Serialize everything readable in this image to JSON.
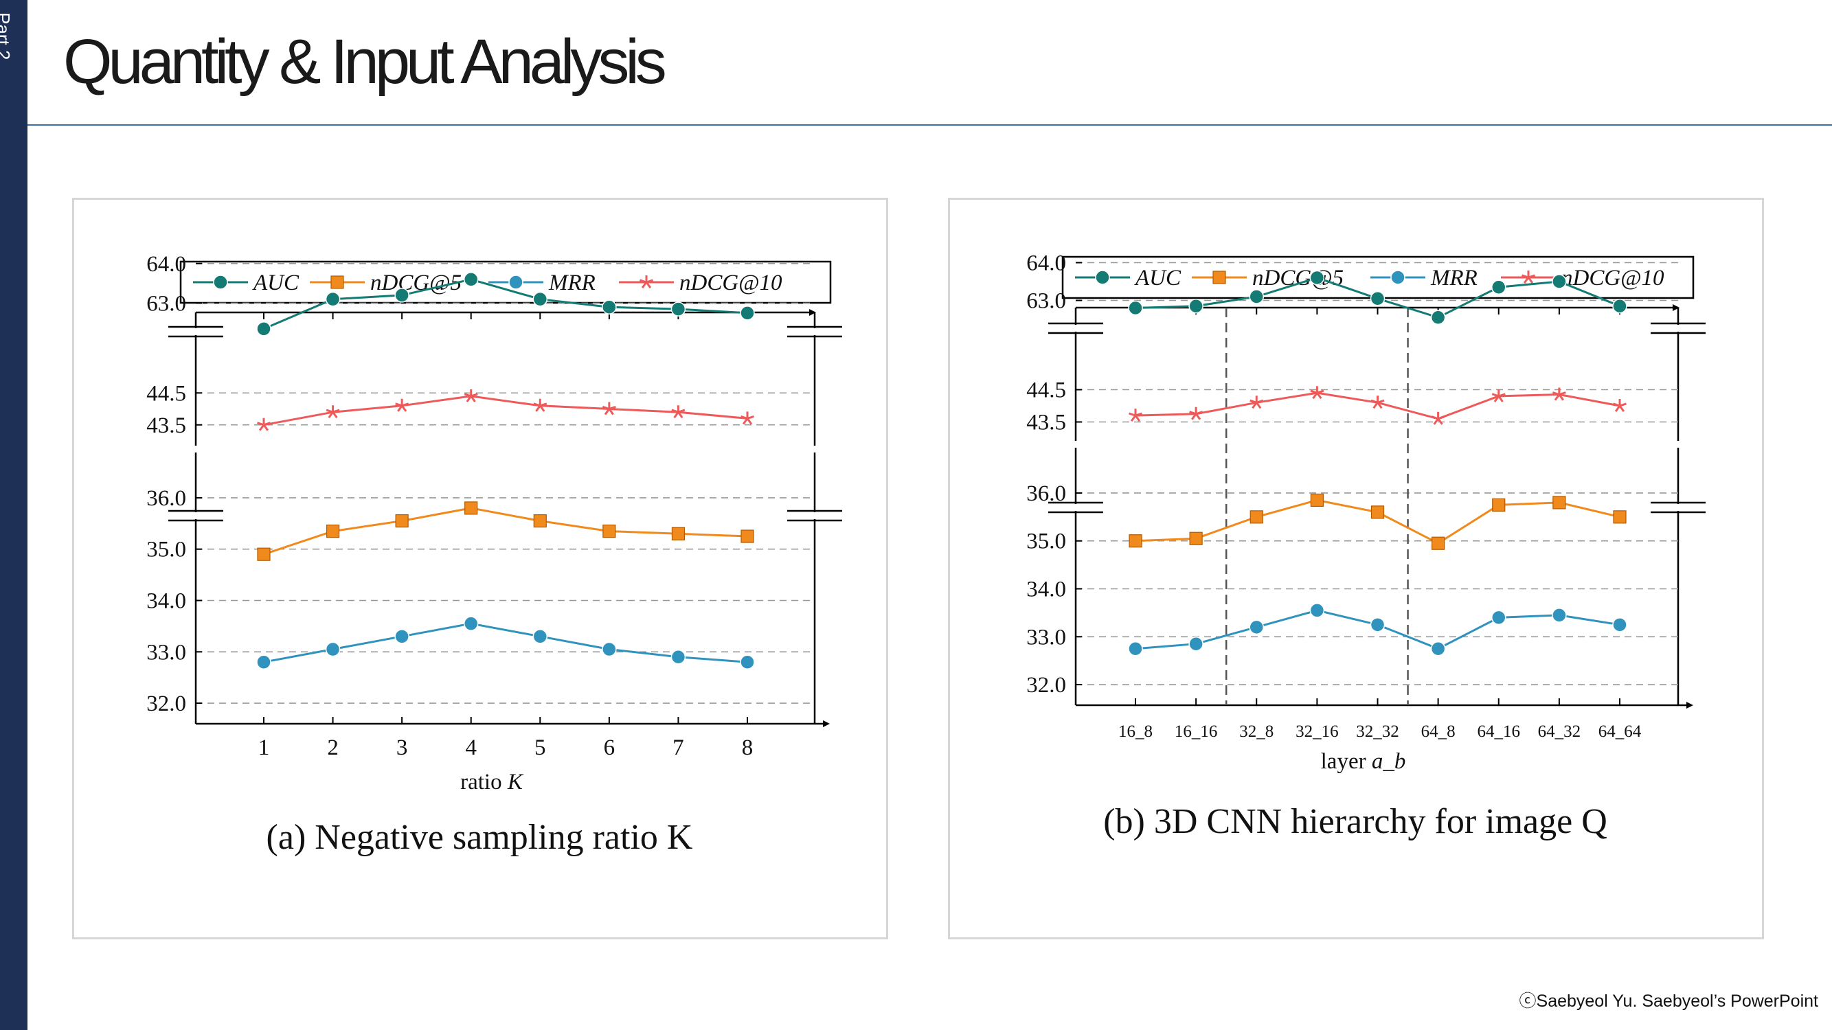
{
  "sidebar": {
    "part_label": "Part 2"
  },
  "page": {
    "title": "Quantity & Input Analysis",
    "footer": "ⓒSaebyeol Yu. Saebyeol’s PowerPoint"
  },
  "colors": {
    "sidebar": "#1f3057",
    "rule": "#3a6fa8",
    "AUC": "#137a74",
    "nDCG@5": "#f08a1c",
    "MRR": "#2f93bd",
    "nDCG@10": "#ee5a5a"
  },
  "chart_data": [
    {
      "type": "line",
      "caption_prefix": "(a)",
      "caption": "Negative sampling ratio K",
      "xlabel": "ratio K",
      "categories": [
        "1",
        "2",
        "3",
        "4",
        "5",
        "6",
        "7",
        "8"
      ],
      "legend": [
        "AUC",
        "nDCG@5",
        "MRR",
        "nDCG@10"
      ],
      "legend_placement": "top",
      "grid": true,
      "broken_y_axis": true,
      "y_segments": [
        {
          "range": [
            62.4,
            64.5
          ],
          "ticks": [
            "64.0",
            "63.0"
          ]
        },
        {
          "range": [
            43.0,
            45.0
          ],
          "ticks": [
            "44.5",
            "43.5"
          ]
        },
        {
          "range": [
            31.8,
            36.2
          ],
          "ticks": [
            "36.0",
            "35.0",
            "34.0",
            "33.0",
            "32.0"
          ]
        }
      ],
      "series": [
        {
          "name": "AUC",
          "marker": "circle",
          "values": [
            62.35,
            63.1,
            63.2,
            63.6,
            63.1,
            62.9,
            62.85,
            62.75
          ]
        },
        {
          "name": "nDCG@10",
          "marker": "star",
          "values": [
            43.5,
            43.9,
            44.1,
            44.4,
            44.1,
            44.0,
            43.9,
            43.7
          ]
        },
        {
          "name": "nDCG@5",
          "marker": "square",
          "values": [
            34.9,
            35.35,
            35.55,
            35.8,
            35.55,
            35.35,
            35.3,
            35.25
          ]
        },
        {
          "name": "MRR",
          "marker": "circle",
          "values": [
            32.8,
            33.05,
            33.3,
            33.55,
            33.3,
            33.05,
            32.9,
            32.8
          ]
        }
      ]
    },
    {
      "type": "line",
      "caption_prefix": "(b)",
      "caption": "3D CNN hierarchy for image Q",
      "xlabel": "layer a_b",
      "categories": [
        "16_8",
        "16_16",
        "32_8",
        "32_16",
        "32_32",
        "64_8",
        "64_16",
        "64_32",
        "64_64"
      ],
      "legend": [
        "AUC",
        "nDCG@5",
        "MRR",
        "nDCG@10"
      ],
      "legend_placement": "top",
      "grid": true,
      "broken_y_axis": true,
      "dashed_separators_between": [
        [
          "16_16",
          "32_8"
        ],
        [
          "32_32",
          "64_8"
        ]
      ],
      "y_segments": [
        {
          "range": [
            62.3,
            64.5
          ],
          "ticks": [
            "64.0",
            "63.0"
          ]
        },
        {
          "range": [
            43.0,
            45.0
          ],
          "ticks": [
            "44.5",
            "43.5"
          ]
        },
        {
          "range": [
            31.8,
            36.2
          ],
          "ticks": [
            "36.0",
            "35.0",
            "34.0",
            "33.0",
            "32.0"
          ]
        }
      ],
      "series": [
        {
          "name": "AUC",
          "marker": "circle",
          "values": [
            62.8,
            62.85,
            63.1,
            63.6,
            63.05,
            62.55,
            63.35,
            63.5,
            62.85
          ]
        },
        {
          "name": "nDCG@10",
          "marker": "star",
          "values": [
            43.7,
            43.75,
            44.1,
            44.4,
            44.1,
            43.6,
            44.3,
            44.35,
            44.0
          ]
        },
        {
          "name": "nDCG@5",
          "marker": "square",
          "values": [
            35.0,
            35.05,
            35.5,
            35.85,
            35.6,
            34.95,
            35.75,
            35.8,
            35.5
          ]
        },
        {
          "name": "MRR",
          "marker": "circle",
          "values": [
            32.75,
            32.85,
            33.2,
            33.55,
            33.25,
            32.75,
            33.4,
            33.45,
            33.25
          ]
        }
      ]
    }
  ]
}
